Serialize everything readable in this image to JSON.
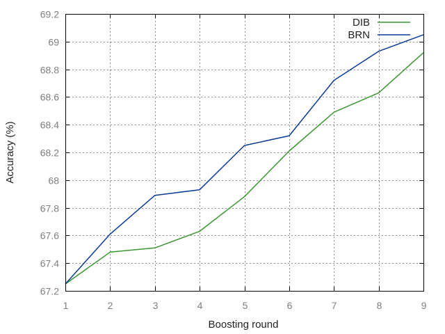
{
  "chart_data": {
    "type": "line",
    "title": "",
    "xlabel": "Boosting round",
    "ylabel": "Accuracy (%)",
    "x": [
      1,
      2,
      3,
      4,
      5,
      6,
      7,
      8,
      9
    ],
    "xlim": [
      1,
      9
    ],
    "ylim": [
      67.2,
      69.2
    ],
    "x_ticks": [
      "1",
      "2",
      "3",
      "4",
      "5",
      "6",
      "7",
      "8",
      "9"
    ],
    "y_ticks": [
      "67.2",
      "67.4",
      "67.6",
      "67.8",
      "68",
      "68.2",
      "68.4",
      "68.6",
      "68.8",
      "69",
      "69.2"
    ],
    "grid": true,
    "legend_position": "top-right",
    "series": [
      {
        "name": "DIB",
        "color": "#3a9632",
        "values": [
          67.25,
          67.48,
          67.51,
          67.63,
          67.88,
          68.21,
          68.49,
          68.63,
          68.92
        ]
      },
      {
        "name": "BRN",
        "color": "#0a3a96",
        "values": [
          67.25,
          67.61,
          67.89,
          67.93,
          68.25,
          68.32,
          68.72,
          68.93,
          69.05
        ]
      }
    ]
  }
}
